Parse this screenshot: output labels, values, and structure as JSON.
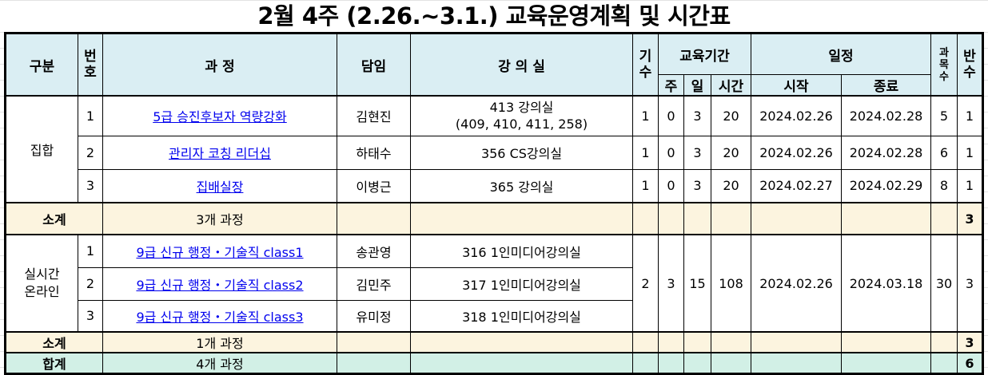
{
  "title": "2월 4주 (2.26.~3.1.) 교육운영계획 및 시간표",
  "headers": {
    "category": "구분",
    "number": "번\n호",
    "course": "과 정",
    "instructor": "담임",
    "room": "강 의 실",
    "term": "기\n수",
    "period": "교육기간",
    "week": "주",
    "day": "일",
    "hours": "시간",
    "schedule": "일정",
    "start": "시작",
    "end": "종료",
    "subjects": "과\n목\n수",
    "classes": "반\n수"
  },
  "group1": {
    "category": "집합",
    "rows": [
      {
        "no": "1",
        "course": "5급 승진후보자 역량강화",
        "instructor": "김현진",
        "room": "413 강의실\n(409, 410, 411, 258)",
        "term": "1",
        "week": "0",
        "day": "3",
        "hours": "20",
        "start": "2024.02.26",
        "end": "2024.02.28",
        "subjects": "5",
        "classes": "1"
      },
      {
        "no": "2",
        "course": "관리자 코칭 리더십",
        "instructor": "하태수",
        "room": "356 CS강의실",
        "term": "1",
        "week": "0",
        "day": "3",
        "hours": "20",
        "start": "2024.02.26",
        "end": "2024.02.28",
        "subjects": "6",
        "classes": "1"
      },
      {
        "no": "3",
        "course": "집배실장",
        "instructor": "이병근",
        "room": "365 강의실",
        "term": "1",
        "week": "0",
        "day": "3",
        "hours": "20",
        "start": "2024.02.27",
        "end": "2024.02.29",
        "subjects": "8",
        "classes": "1"
      }
    ],
    "subtotal_label": "소계",
    "subtotal_courses": "3개 과정",
    "subtotal_classes": "3"
  },
  "group2": {
    "category": "실시간\n온라인",
    "rows": [
      {
        "no": "1",
        "course": "9급 신규 행정・기술직 class1",
        "instructor": "송관영",
        "room": "316 1인미디어강의실"
      },
      {
        "no": "2",
        "course": "9급 신규 행정・기술직 class2",
        "instructor": "김민주",
        "room": "317 1인미디어강의실"
      },
      {
        "no": "3",
        "course": "9급 신규 행정・기술직 class3",
        "instructor": "유미정",
        "room": "318 1인미디어강의실"
      }
    ],
    "term": "2",
    "week": "3",
    "day": "15",
    "hours": "108",
    "start": "2024.02.26",
    "end": "2024.03.18",
    "subjects": "30",
    "classes": "3",
    "subtotal_label": "소계",
    "subtotal_courses": "1개 과정",
    "subtotal_classes": "3"
  },
  "total": {
    "label": "합계",
    "courses": "4개 과정",
    "classes": "6"
  }
}
